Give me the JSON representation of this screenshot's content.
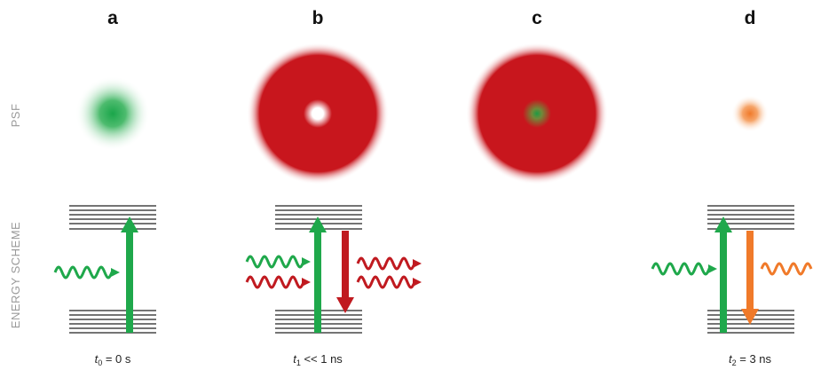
{
  "panels": [
    "a",
    "b",
    "c",
    "d"
  ],
  "row_labels": {
    "psf": "PSF",
    "energy": "ENERGY SCHEME"
  },
  "times": [
    {
      "symbol": "t",
      "subscript": "0",
      "rest": " = 0 s"
    },
    {
      "symbol": "t",
      "subscript": "1",
      "rest": " << 1 ns"
    },
    {
      "symbol": "t",
      "subscript": "2",
      "rest": " = 3 ns"
    }
  ]
}
